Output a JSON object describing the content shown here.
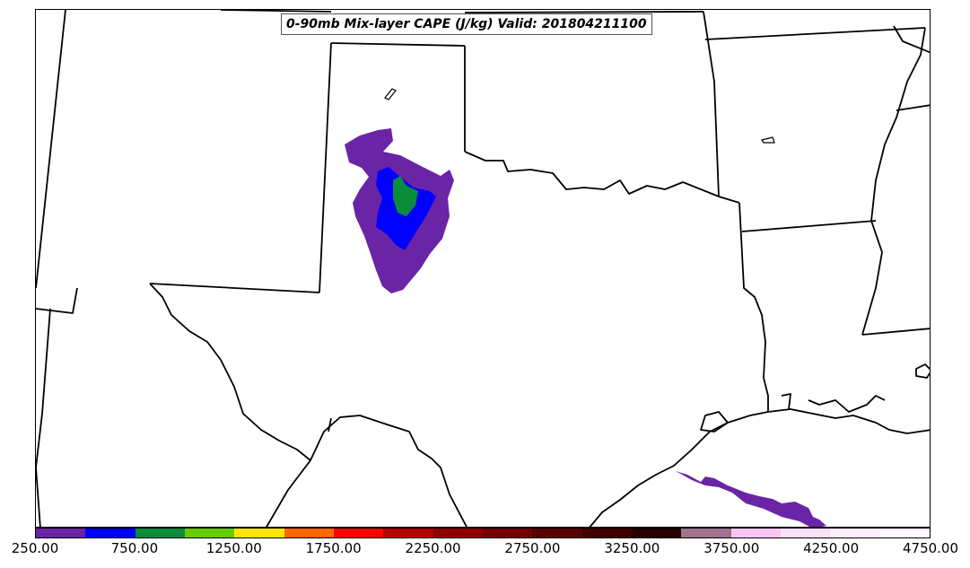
{
  "title": "0-90mb Mix-layer CAPE (J/kg) Valid: 201804211100",
  "colorbar": {
    "colors": [
      "#6a24a6",
      "#0000ff",
      "#0a8c3a",
      "#66cc00",
      "#ffe600",
      "#ff6600",
      "#ff0000",
      "#b30000",
      "#8c0000",
      "#730000",
      "#590000",
      "#400000",
      "#260000",
      "#a0728c",
      "#f7c6f2",
      "#fce0fa",
      "#ffeefd",
      "#fff7fe"
    ],
    "tick_labels": [
      "250.00",
      "750.00",
      "1250.00",
      "1750.00",
      "2250.00",
      "2750.00",
      "3250.00",
      "3750.00",
      "4250.00",
      "4750.00"
    ],
    "range": [
      250,
      4750
    ],
    "step": 250
  },
  "map": {
    "region": "Southern Plains / Texas",
    "features": {
      "cape_250_750": "#6a24a6",
      "cape_750_1000": "#0000ff",
      "cape_1000_1250": "#0a8c3a"
    },
    "icons": [
      "state-borders",
      "coastline",
      "cape-contours"
    ]
  }
}
